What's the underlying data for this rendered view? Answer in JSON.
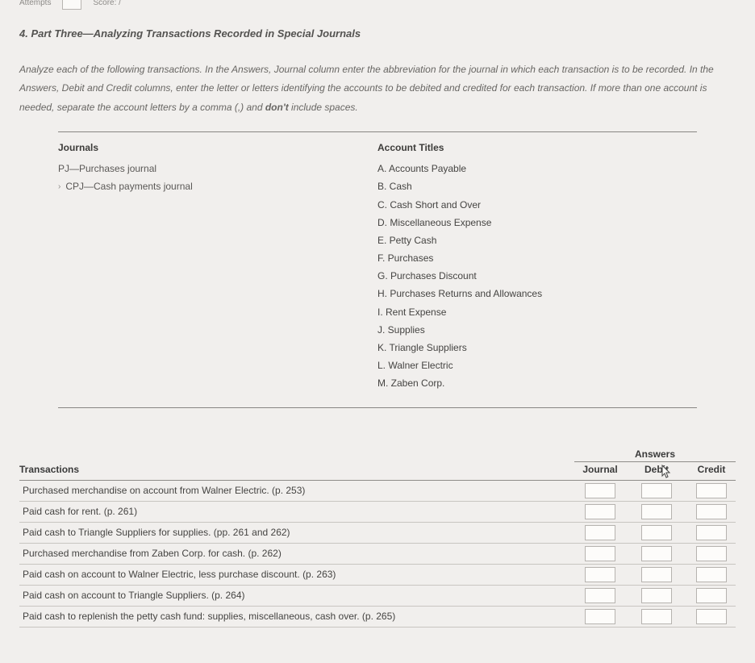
{
  "top": {
    "attempts_prefix": "Attempts",
    "score_prefix": "Score: /"
  },
  "section_title": "4. Part Three—Analyzing Transactions Recorded in Special Journals",
  "instructions_html": "Analyze each of the following transactions. In the Answers, Journal column enter the abbreviation for the journal in which each transaction is to be recorded. In the Answers, Debit and Credit columns, enter the letter or letters identifying the accounts to be debited and credited for each transaction. If more than one account is needed, separate the account letters by a comma (,) and don't include spaces.",
  "journals": {
    "heading": "Journals",
    "items": [
      "PJ—Purchases journal",
      "CPJ—Cash payments journal"
    ]
  },
  "accounts": {
    "heading": "Account Titles",
    "items": [
      "A.  Accounts Payable",
      "B.  Cash",
      "C.  Cash Short and Over",
      "D.  Miscellaneous Expense",
      "E.  Petty Cash",
      "F.  Purchases",
      "G.  Purchases Discount",
      "H.  Purchases Returns and Allowances",
      "I.   Rent Expense",
      "J.  Supplies",
      "K.  Triangle Suppliers",
      "L.  Walner Electric",
      "M.  Zaben Corp."
    ]
  },
  "answers_super": "Answers",
  "cols": {
    "transactions": "Transactions",
    "journal": "Journal",
    "debit": "Debit",
    "credit": "Credit"
  },
  "transactions": [
    "Purchased merchandise on account from Walner Electric. (p. 253)",
    "Paid cash for rent. (p. 261)",
    "Paid cash to Triangle Suppliers for supplies. (pp. 261 and 262)",
    "Purchased merchandise from Zaben Corp. for cash. (p. 262)",
    "Paid cash on account to Walner Electric, less purchase discount. (p. 263)",
    "Paid cash on account to Triangle Suppliers. (p. 264)",
    "Paid cash to replenish the petty cash fund: supplies, miscellaneous, cash over. (p. 265)"
  ],
  "style": {
    "bg": "#f1efed",
    "text": "#3a3a3a",
    "muted": "#686663",
    "rule": "#888683",
    "row_rule": "#c8c5c1",
    "input_border": "#b6b3af",
    "input_bg": "#fdfcfa"
  }
}
